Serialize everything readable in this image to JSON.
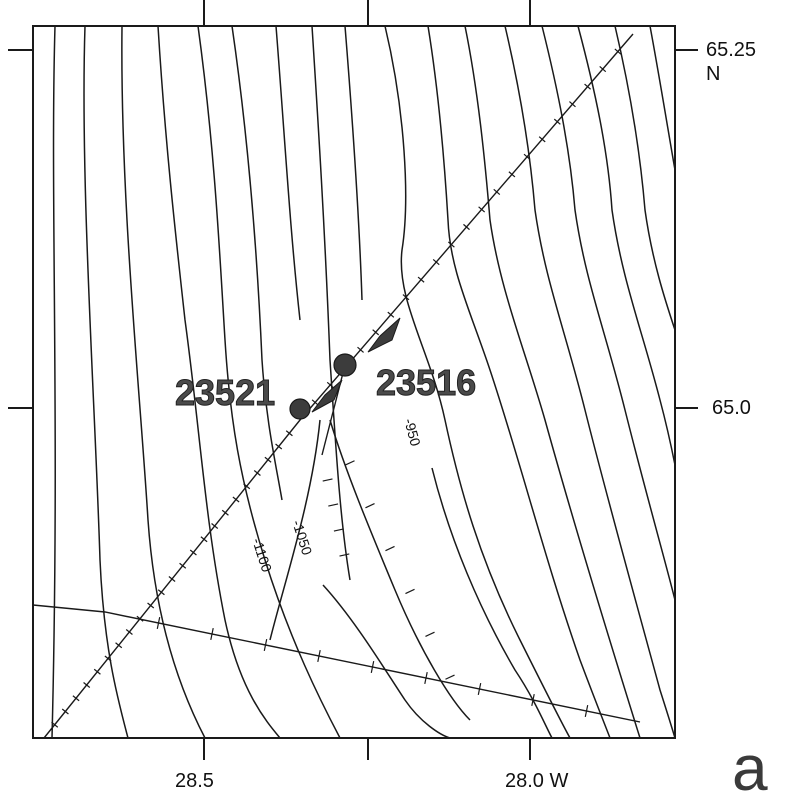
{
  "axes": {
    "longitude_ticks": [
      {
        "value": -28.5,
        "label": "28.5"
      },
      {
        "value": -28.0,
        "label": "28.0 W"
      }
    ],
    "latitude_ticks": [
      {
        "value": 65.25,
        "label": "65.25",
        "sublabel": "N"
      },
      {
        "value": 65.0,
        "label": "65.0"
      }
    ],
    "lon_range": [
      -28.79,
      -27.84
    ],
    "lat_range": [
      64.87,
      65.27
    ]
  },
  "stations": [
    {
      "id": "23521",
      "label": "23521",
      "lon": -28.46,
      "lat": 64.999
    },
    {
      "id": "23516",
      "label": "23516",
      "lon": -28.41,
      "lat": 65.024
    }
  ],
  "contour_labels": [
    {
      "text": "-950",
      "lon": -28.21,
      "lat": 64.988
    },
    {
      "text": "-1050",
      "lon": -28.48,
      "lat": 64.946
    },
    {
      "text": "-1100",
      "lon": -28.55,
      "lat": 64.94
    }
  ],
  "panel_letter": "a",
  "colors": {
    "ink": "#1a1a1a",
    "station_fill": "#3c3c3c",
    "label_fill": "#4a4a4a"
  }
}
